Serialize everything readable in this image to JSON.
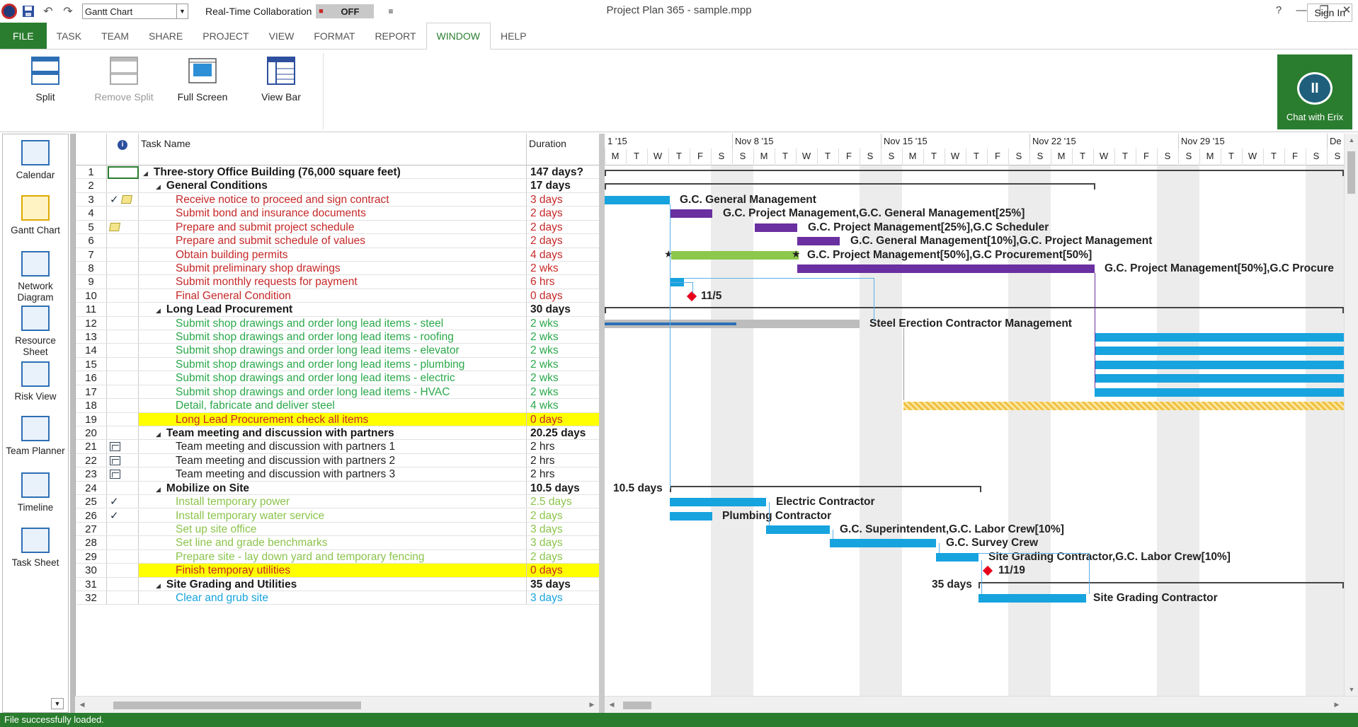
{
  "app": {
    "window_title": "Project Plan 365 - sample.mpp",
    "view_selector": "Gantt Chart",
    "collaboration_label": "Real-Time Collaboration",
    "collaboration_state": "OFF",
    "help": "?"
  },
  "ribbon": {
    "tabs": [
      "FILE",
      "TASK",
      "TEAM",
      "SHARE",
      "PROJECT",
      "VIEW",
      "FORMAT",
      "REPORT",
      "WINDOW",
      "HELP"
    ],
    "active_tab": "WINDOW",
    "sign_in": "Sign In",
    "buttons": {
      "split": "Split",
      "remove_split": "Remove Split",
      "full_screen": "Full Screen",
      "view_bar": "View Bar"
    },
    "chat": "Chat with Erix"
  },
  "viewbar": {
    "items": [
      "Calendar",
      "Gantt Chart",
      "Network Diagram",
      "Resource Sheet",
      "Risk View",
      "Team Planner",
      "Timeline",
      "Task Sheet"
    ],
    "active": "Gantt Chart"
  },
  "table": {
    "columns": {
      "info": "i",
      "task_name": "Task Name",
      "duration": "Duration"
    },
    "rows": [
      {
        "id": "1",
        "name": "Three-story Office Building (76,000 square feet)",
        "duration": "147 days?"
      },
      {
        "id": "2",
        "name": "General Conditions",
        "duration": "17 days"
      },
      {
        "id": "3",
        "name": "Receive notice to proceed and sign contract",
        "duration": "3 days"
      },
      {
        "id": "4",
        "name": "Submit bond and insurance documents",
        "duration": "2 days"
      },
      {
        "id": "5",
        "name": "Prepare and submit project schedule",
        "duration": "2 days"
      },
      {
        "id": "6",
        "name": "Prepare and submit schedule of values",
        "duration": "2 days"
      },
      {
        "id": "7",
        "name": "Obtain building permits",
        "duration": "4 days"
      },
      {
        "id": "8",
        "name": "Submit preliminary shop drawings",
        "duration": "2 wks"
      },
      {
        "id": "9",
        "name": "Submit monthly requests for payment",
        "duration": "6 hrs"
      },
      {
        "id": "10",
        "name": "Final General Condition",
        "duration": "0 days"
      },
      {
        "id": "11",
        "name": "Long Lead Procurement",
        "duration": "30 days"
      },
      {
        "id": "12",
        "name": "Submit shop drawings and order long lead items - steel",
        "duration": "2 wks"
      },
      {
        "id": "13",
        "name": "Submit shop drawings and order long lead items - roofing",
        "duration": "2 wks"
      },
      {
        "id": "14",
        "name": "Submit shop drawings and order long lead items - elevator",
        "duration": "2 wks"
      },
      {
        "id": "15",
        "name": "Submit shop drawings and order long lead items - plumbing",
        "duration": "2 wks"
      },
      {
        "id": "16",
        "name": "Submit shop drawings and order long lead items - electric",
        "duration": "2 wks"
      },
      {
        "id": "17",
        "name": "Submit shop drawings and order long lead items - HVAC",
        "duration": "2 wks"
      },
      {
        "id": "18",
        "name": "Detail, fabricate and deliver steel",
        "duration": "4 wks"
      },
      {
        "id": "19",
        "name": "Long Lead Procurement check all items",
        "duration": "0 days"
      },
      {
        "id": "20",
        "name": "Team meeting and discussion with partners",
        "duration": "20.25 days"
      },
      {
        "id": "21",
        "name": "Team meeting and discussion with partners 1",
        "duration": "2 hrs"
      },
      {
        "id": "22",
        "name": "Team meeting and discussion with partners 2",
        "duration": "2 hrs"
      },
      {
        "id": "23",
        "name": "Team meeting and discussion with partners 3",
        "duration": "2 hrs"
      },
      {
        "id": "24",
        "name": "Mobilize on Site",
        "duration": "10.5 days"
      },
      {
        "id": "25",
        "name": "Install temporary power",
        "duration": "2.5 days"
      },
      {
        "id": "26",
        "name": "Install temporary water service",
        "duration": "2 days"
      },
      {
        "id": "27",
        "name": "Set up site office",
        "duration": "3 days"
      },
      {
        "id": "28",
        "name": "Set line and grade benchmarks",
        "duration": "3 days"
      },
      {
        "id": "29",
        "name": "Prepare site - lay down yard and temporary fencing",
        "duration": "2 days"
      },
      {
        "id": "30",
        "name": "Finish temporay utilities",
        "duration": "0 days"
      },
      {
        "id": "31",
        "name": "Site Grading and Utilities",
        "duration": "35 days"
      },
      {
        "id": "32",
        "name": "Clear and grub site",
        "duration": "3 days"
      }
    ]
  },
  "timescale": {
    "weeks": [
      "1 '15",
      "Nov 8 '15",
      "Nov 15 '15",
      "Nov 22 '15",
      "Nov 29 '15",
      "De"
    ],
    "days": [
      "M",
      "T",
      "W",
      "T",
      "F",
      "S",
      "S",
      "M",
      "T",
      "W",
      "T",
      "F",
      "S",
      "S",
      "M",
      "T",
      "W",
      "T",
      "F",
      "S",
      "S",
      "M",
      "T",
      "W",
      "T",
      "F",
      "S",
      "S",
      "M",
      "T",
      "W",
      "T",
      "F",
      "S",
      "S",
      "M",
      "T",
      "W",
      "T",
      "F",
      "S",
      "S"
    ]
  },
  "gantt_labels": {
    "r3": "G.C. General Management",
    "r4": "G.C. Project Management,G.C. General Management[25%]",
    "r5": "G.C. Project Management[25%],G.C Scheduler",
    "r6": "G.C. General Management[10%],G.C. Project Management",
    "r7": "G.C. Project Management[50%],G.C Procurement[50%]",
    "r8": "G.C. Project Management[50%],G.C Procure",
    "r10": "11/5",
    "r12": "Steel Erection Contractor Management",
    "r24": "10.5 days",
    "r25": "Electric Contractor",
    "r26": "Plumbing Contractor",
    "r27": "G.C. Superintendent,G.C. Labor Crew[10%]",
    "r28": "G.C. Survey Crew",
    "r29": "Site Grading Contractor,G.C. Labor Crew[10%]",
    "r30": "11/19",
    "r31": "35 days",
    "r32": "Site Grading Contractor"
  },
  "status": "File successfully loaded.",
  "colors": {
    "accent": "#2a7d2e",
    "summary_task": "#1a1a1a",
    "critical_text": "#c62828",
    "green_text": "#2aa84a",
    "lightgreen_text": "#8cc44c",
    "blue_text": "#17a3de",
    "bar_blue": "#17a3de",
    "bar_purple": "#6a2fa0",
    "bar_green": "#8cc84b",
    "milestone": "#e8001c",
    "highlight": "#ffff00"
  }
}
